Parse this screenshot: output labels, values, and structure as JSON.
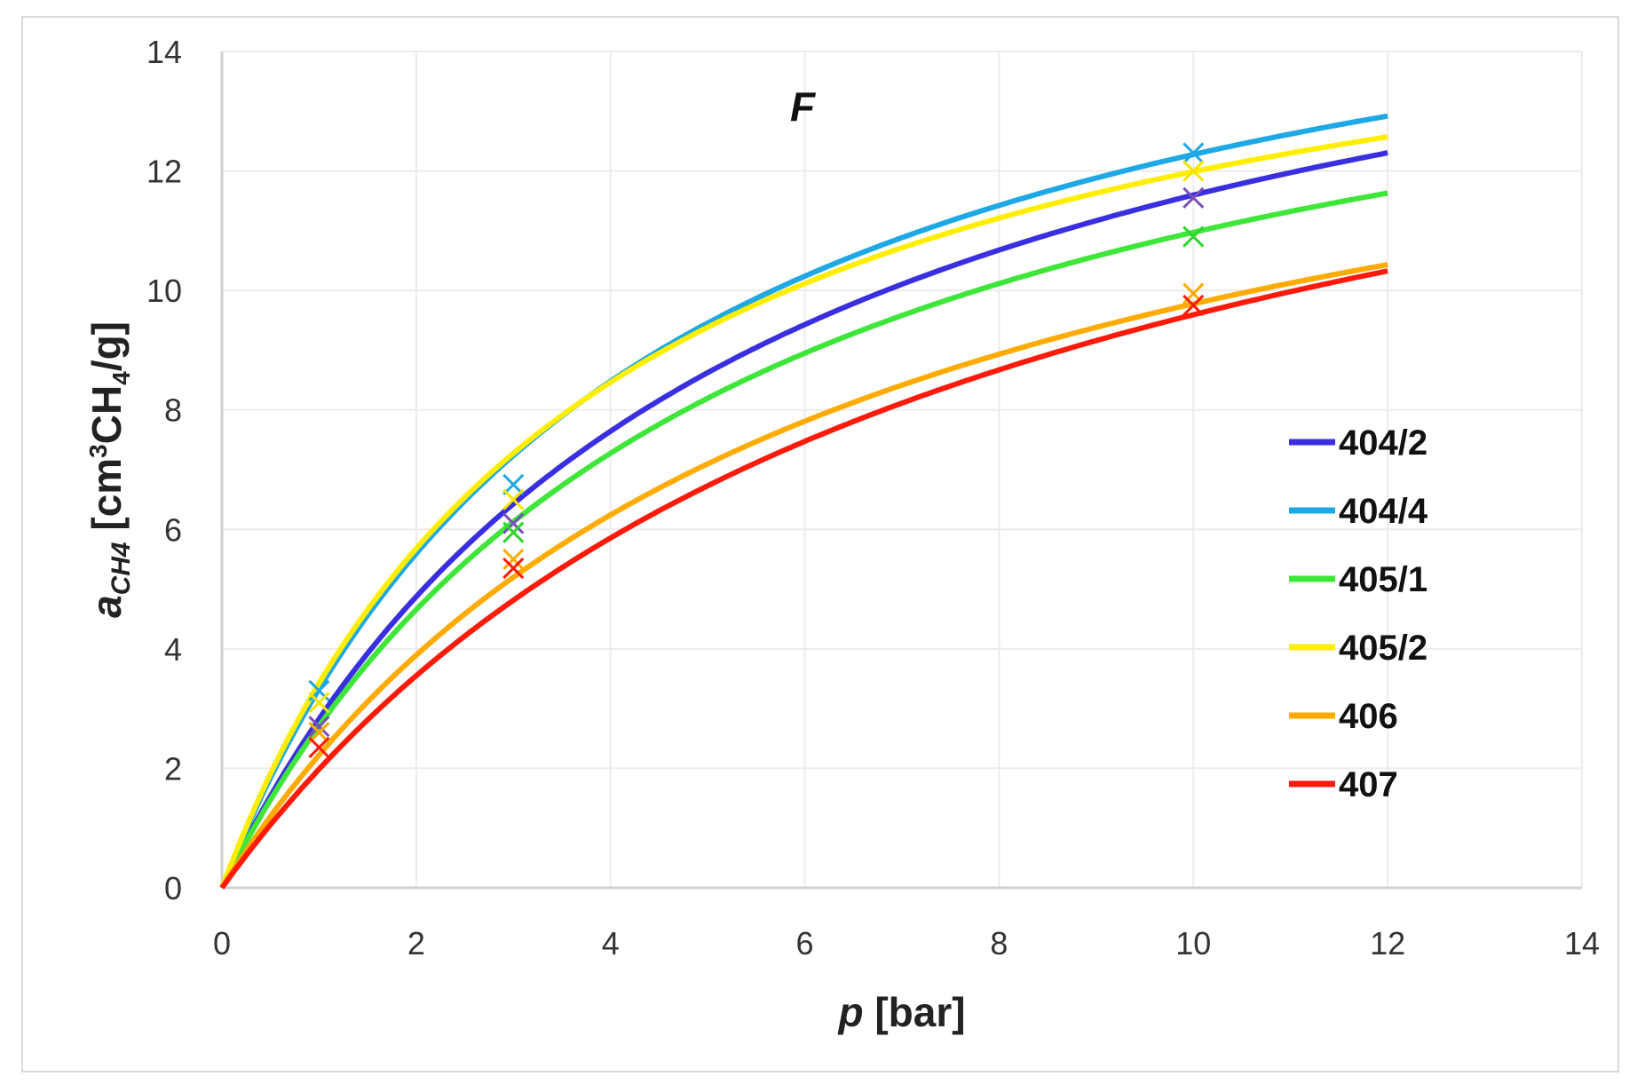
{
  "chart_data": {
    "type": "line",
    "title": "F",
    "xlabel": {
      "symbol": "p",
      "unit": " [bar]"
    },
    "ylabel": {
      "prefix": "a",
      "sub1": "CH4",
      "part1": " [cm",
      "sup": "3",
      "part2": "CH",
      "sub2": "4",
      "part3": "/g]"
    },
    "xlim": [
      0,
      14
    ],
    "ylim": [
      0,
      14
    ],
    "xticks": [
      "0",
      "2",
      "4",
      "6",
      "8",
      "10",
      "12",
      "14"
    ],
    "yticks": [
      "0",
      "2",
      "4",
      "6",
      "8",
      "10",
      "12",
      "14"
    ],
    "grid": true,
    "legend_position": "right",
    "series": [
      {
        "name": "404/2",
        "color": "#3a2fe0",
        "marker_color": "#7b4fb8",
        "fit": {
          "a": 17.7,
          "b": 0.19
        },
        "points": [
          {
            "x": 1,
            "y": 2.7
          },
          {
            "x": 3,
            "y": 6.1
          },
          {
            "x": 10,
            "y": 11.55
          }
        ]
      },
      {
        "name": "404/4",
        "color": "#1ea8e6",
        "marker_color": "#1ea8e6",
        "fit": {
          "a": 17.5,
          "b": 0.235
        },
        "points": [
          {
            "x": 1,
            "y": 3.3
          },
          {
            "x": 3,
            "y": 6.75
          },
          {
            "x": 10,
            "y": 12.3
          }
        ]
      },
      {
        "name": "405/1",
        "color": "#3ee63a",
        "marker_color": "#2fd42c",
        "fit": {
          "a": 16.6,
          "b": 0.195
        },
        "points": [
          {
            "x": 1,
            "y": 2.6
          },
          {
            "x": 3,
            "y": 5.95
          },
          {
            "x": 10,
            "y": 10.9
          }
        ]
      },
      {
        "name": "405/2",
        "color": "#ffee00",
        "marker_color": "#f5e400",
        "fit": {
          "a": 16.6,
          "b": 0.26
        },
        "points": [
          {
            "x": 1,
            "y": 3.1
          },
          {
            "x": 3,
            "y": 6.5
          },
          {
            "x": 10,
            "y": 12.0
          }
        ]
      },
      {
        "name": "406",
        "color": "#ffab00",
        "marker_color": "#ffab00",
        "fit": {
          "a": 15.7,
          "b": 0.165
        },
        "points": [
          {
            "x": 1,
            "y": 2.6
          },
          {
            "x": 3,
            "y": 5.5
          },
          {
            "x": 10,
            "y": 9.95
          }
        ]
      },
      {
        "name": "407",
        "color": "#ff1a0a",
        "marker_color": "#ff1a0a",
        "fit": {
          "a": 16.7,
          "b": 0.135
        },
        "points": [
          {
            "x": 1,
            "y": 2.35
          },
          {
            "x": 3,
            "y": 5.35
          },
          {
            "x": 10,
            "y": 9.75
          }
        ]
      }
    ]
  }
}
